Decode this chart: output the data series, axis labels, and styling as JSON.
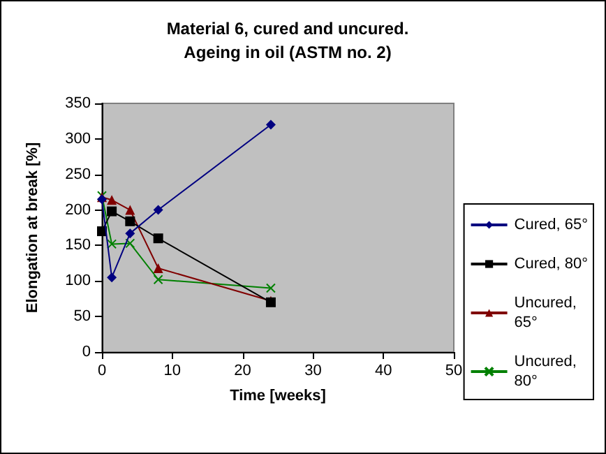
{
  "chart_data": {
    "type": "line",
    "title": "Material 6, cured and uncured.\nAgeing in oil (ASTM no. 2)",
    "xlabel": "Time [weeks]",
    "ylabel": "Elongation at break [%]",
    "xlim": [
      0,
      50
    ],
    "xticks": [
      0,
      10,
      20,
      30,
      40,
      50
    ],
    "ylim": [
      0,
      350
    ],
    "yticks": [
      0,
      50,
      100,
      150,
      200,
      250,
      300,
      350
    ],
    "grid": false,
    "legend": "right",
    "series": [
      {
        "name": "Cured, 65°",
        "color": "#000080",
        "marker": "diamond",
        "x": [
          0,
          1.4,
          4,
          8,
          24
        ],
        "values": [
          215,
          105,
          167,
          200,
          320
        ]
      },
      {
        "name": "Cured, 80°",
        "color": "#000000",
        "marker": "square",
        "x": [
          0,
          1.4,
          4,
          8,
          24
        ],
        "values": [
          170,
          198,
          184,
          160,
          70
        ]
      },
      {
        "name": "Uncured,\n65°",
        "color": "#800000",
        "marker": "triangle",
        "x": [
          0,
          1.4,
          4,
          8,
          24
        ],
        "values": [
          218,
          214,
          200,
          118,
          72
        ]
      },
      {
        "name": "Uncured,\n80°",
        "color": "#008000",
        "marker": "cross",
        "x": [
          0,
          1.4,
          4,
          8,
          24
        ],
        "values": [
          220,
          152,
          153,
          102,
          90
        ]
      }
    ]
  }
}
